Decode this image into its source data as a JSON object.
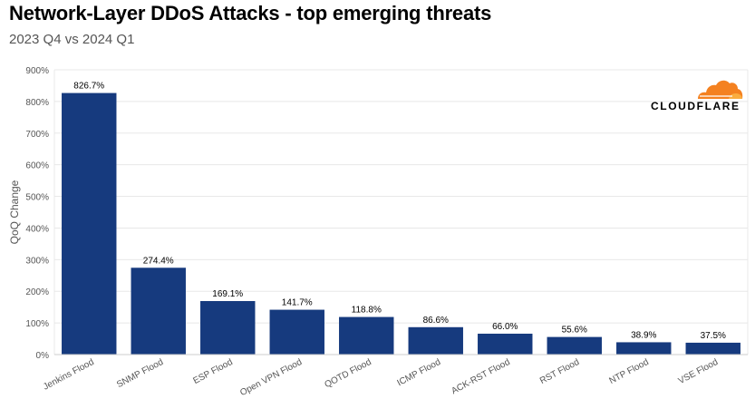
{
  "title": "Network-Layer DDoS Attacks - top emerging threats",
  "subtitle": "2023 Q4 vs 2024 Q1",
  "brand": {
    "name": "CLOUDFLARE",
    "colors": {
      "orange": "#F48120",
      "light_orange": "#FAAD3F"
    }
  },
  "colors": {
    "bar": "#163A7E",
    "grid": "#e8e8e8",
    "axis_text": "#555555",
    "label": "#000000"
  },
  "chart_data": {
    "type": "bar",
    "title": "Network-Layer DDoS Attacks - top emerging threats",
    "subtitle": "2023 Q4 vs 2024 Q1",
    "xlabel": "",
    "ylabel": "QoQ Change",
    "categories": [
      "Jenkins Flood",
      "SNMP Flood",
      "ESP Flood",
      "Open VPN Flood",
      "QOTD Flood",
      "ICMP Flood",
      "ACK-RST Flood",
      "RST Flood",
      "NTP Flood",
      "VSE Flood"
    ],
    "values": [
      826.7,
      274.4,
      169.1,
      141.7,
      118.8,
      86.6,
      66.0,
      55.6,
      38.9,
      37.5
    ],
    "value_labels": [
      "826.7%",
      "274.4%",
      "169.1%",
      "141.7%",
      "118.8%",
      "86.6%",
      "66.0%",
      "55.6%",
      "38.9%",
      "37.5%"
    ],
    "ylim": [
      0,
      900
    ],
    "yticks": [
      0,
      100,
      200,
      300,
      400,
      500,
      600,
      700,
      800,
      900
    ],
    "ytick_labels": [
      "0%",
      "100%",
      "200%",
      "300%",
      "400%",
      "500%",
      "600%",
      "700%",
      "800%",
      "900%"
    ],
    "grid": true,
    "legend": "none"
  }
}
